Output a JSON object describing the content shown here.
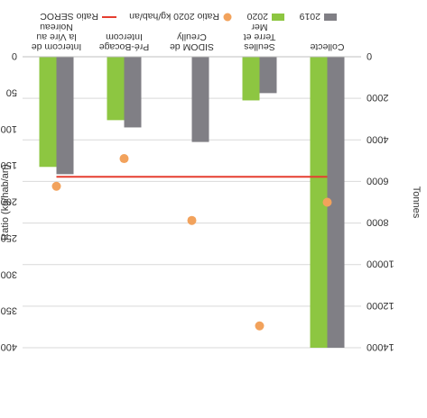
{
  "chart_data": {
    "type": "bar",
    "orientation": "rotated-180",
    "categories": [
      "Collecte",
      "Seulles Terre et Mer",
      "SIDOM de Creully",
      "Pré-Bocage Intercom",
      "Intercom de la Vire au Noireau"
    ],
    "category_lines": [
      [
        "Collecte"
      ],
      [
        "Seulles",
        "Terre et",
        "Mer"
      ],
      [
        "SIDOM de",
        "Creully"
      ],
      [
        "Pré-Bocage",
        "Intercom"
      ],
      [
        "Intercom de",
        "la Vire au",
        "Noireau"
      ]
    ],
    "series": [
      {
        "name": "2019",
        "color": "#807f85",
        "values": [
          14000,
          1750,
          4100,
          3400,
          5650
        ]
      },
      {
        "name": "2020",
        "color": "#8dc641",
        "values": [
          14000,
          2100,
          null,
          3050,
          5300
        ]
      }
    ],
    "ratio_series": {
      "name": "Ratio 2020 kg/hab/an",
      "color": "#f2a25c",
      "values": [
        200,
        370,
        225,
        140,
        178
      ]
    },
    "reference_line": {
      "name": "Ratio SEROC",
      "color": "#e53e30",
      "value": 165
    },
    "ylabel": "Tonnes",
    "y2label": "Ratio (kg/hab/an)",
    "ylim": [
      0,
      14000
    ],
    "yticks": [
      "0",
      "2000",
      "4000",
      "6000",
      "8000",
      "10000",
      "12000",
      "14000"
    ],
    "y2lim": [
      0,
      400
    ],
    "y2ticks": [
      "0",
      "50",
      "100",
      "150",
      "200",
      "250",
      "300",
      "350",
      "400"
    ],
    "grid": true,
    "legend_position": "bottom"
  }
}
